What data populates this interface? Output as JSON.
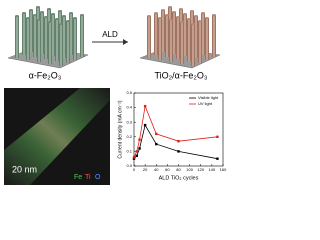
{
  "labels": {
    "arrow": "ALD",
    "left": "α-Fe₂O₃",
    "right": "TiO₂/α-Fe₂O₃",
    "scale": "20 nm",
    "elements": [
      "Fe",
      "Ti",
      "O"
    ]
  },
  "chart_data": {
    "type": "line",
    "x_label": "ALD TiO₂ cycles",
    "y_label": "Current density (mA cm⁻²)",
    "x": [
      0,
      5,
      10,
      20,
      40,
      80,
      150
    ],
    "series": [
      {
        "name": "Visible light",
        "color": "#000000",
        "values": [
          0.05,
          0.07,
          0.12,
          0.28,
          0.15,
          0.1,
          0.05
        ]
      },
      {
        "name": "UV light",
        "color": "#e0201b",
        "values": [
          0.06,
          0.1,
          0.18,
          0.41,
          0.22,
          0.17,
          0.2
        ]
      }
    ],
    "xlim": [
      0,
      160
    ],
    "xticks": [
      0,
      20,
      40,
      60,
      80,
      100,
      120,
      140,
      160
    ],
    "ylim": [
      0,
      0.5
    ],
    "yticks": [
      {
        "value": 0,
        "label": "0.0"
      },
      0.1,
      0.2,
      0.3,
      0.4,
      0.5
    ],
    "legend": "upper right"
  }
}
